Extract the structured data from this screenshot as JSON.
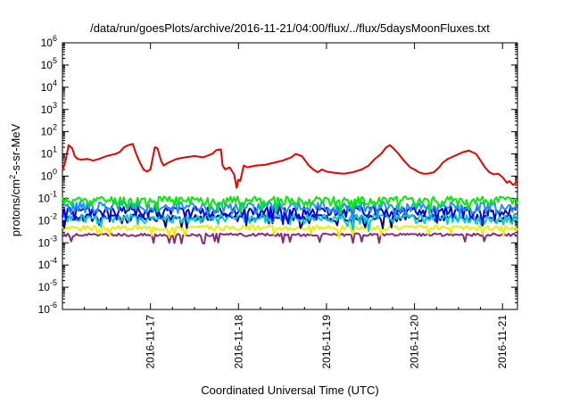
{
  "chart_data": {
    "type": "line",
    "title": "/data/run/goesPlots/archive/2016-11-21/04:00/flux/../flux/5daysMoonFluxes.txt",
    "xlabel": "Coordinated Universal Time (UTC)",
    "ylabel": {
      "base": "protons/cm",
      "sup": "2",
      "rest": "-s-sr-MeV"
    },
    "x_tick_labels": [
      "2016-11-17",
      "2016-11-18",
      "2016-11-19",
      "2016-11-20",
      "2016-11-21"
    ],
    "x_tick_days": [
      1,
      2,
      3,
      4,
      5
    ],
    "xlim_days": [
      0,
      5.17
    ],
    "y_scale": "log",
    "ylim_exp": [
      -6,
      6
    ],
    "y_ticks": [
      {
        "base": "10",
        "exp": "-6"
      },
      {
        "base": "10",
        "exp": "-5"
      },
      {
        "base": "10",
        "exp": "-4"
      },
      {
        "base": "10",
        "exp": "-3"
      },
      {
        "base": "10",
        "exp": "-2"
      },
      {
        "base": "10",
        "exp": "-1"
      },
      {
        "base": "10",
        "exp": "0"
      },
      {
        "base": "10",
        "exp": "1"
      },
      {
        "base": "10",
        "exp": "2"
      },
      {
        "base": "10",
        "exp": "3"
      },
      {
        "base": "10",
        "exp": "4"
      },
      {
        "base": "10",
        "exp": "5"
      },
      {
        "base": "10",
        "exp": "6"
      }
    ],
    "grid": false,
    "legend": "none",
    "series": [
      {
        "color": "#ee0000",
        "points": [
          [
            0.0,
            1.8
          ],
          [
            0.03,
            4
          ],
          [
            0.07,
            25
          ],
          [
            0.11,
            18
          ],
          [
            0.14,
            8
          ],
          [
            0.17,
            6
          ],
          [
            0.22,
            5.5
          ],
          [
            0.28,
            6
          ],
          [
            0.35,
            5
          ],
          [
            0.42,
            6
          ],
          [
            0.5,
            8
          ],
          [
            0.6,
            10
          ],
          [
            0.65,
            12
          ],
          [
            0.7,
            20
          ],
          [
            0.75,
            25
          ],
          [
            0.8,
            28
          ],
          [
            0.83,
            12
          ],
          [
            0.87,
            5
          ],
          [
            0.92,
            2
          ],
          [
            0.96,
            1.6
          ],
          [
            1.0,
            2
          ],
          [
            1.05,
            20
          ],
          [
            1.08,
            18
          ],
          [
            1.12,
            5
          ],
          [
            1.15,
            3
          ],
          [
            1.2,
            4
          ],
          [
            1.3,
            6
          ],
          [
            1.4,
            7
          ],
          [
            1.5,
            8
          ],
          [
            1.6,
            7
          ],
          [
            1.7,
            10
          ],
          [
            1.75,
            15
          ],
          [
            1.8,
            16
          ],
          [
            1.82,
            3
          ],
          [
            1.85,
            2
          ],
          [
            1.9,
            2.5
          ],
          [
            1.95,
            1.2
          ],
          [
            1.98,
            0.3
          ],
          [
            2.0,
            0.7
          ],
          [
            2.02,
            0.6
          ],
          [
            2.06,
            3
          ],
          [
            2.1,
            2.5
          ],
          [
            2.2,
            3
          ],
          [
            2.3,
            3.2
          ],
          [
            2.4,
            4
          ],
          [
            2.5,
            5
          ],
          [
            2.6,
            7
          ],
          [
            2.65,
            10
          ],
          [
            2.72,
            8
          ],
          [
            2.8,
            3
          ],
          [
            2.85,
            2
          ],
          [
            2.9,
            1.5
          ],
          [
            2.95,
            2
          ],
          [
            3.0,
            1.6
          ],
          [
            3.05,
            1.5
          ],
          [
            3.1,
            1.4
          ],
          [
            3.2,
            1.3
          ],
          [
            3.3,
            1.5
          ],
          [
            3.4,
            2
          ],
          [
            3.48,
            3
          ],
          [
            3.55,
            6
          ],
          [
            3.62,
            10
          ],
          [
            3.68,
            20
          ],
          [
            3.72,
            25
          ],
          [
            3.76,
            18
          ],
          [
            3.82,
            10
          ],
          [
            3.88,
            5
          ],
          [
            3.95,
            2.5
          ],
          [
            4.0,
            2
          ],
          [
            4.05,
            1.5
          ],
          [
            4.1,
            1.3
          ],
          [
            4.15,
            1.3
          ],
          [
            4.22,
            1.5
          ],
          [
            4.28,
            2.5
          ],
          [
            4.32,
            4
          ],
          [
            4.38,
            6
          ],
          [
            4.45,
            8
          ],
          [
            4.55,
            12
          ],
          [
            4.62,
            14
          ],
          [
            4.7,
            10
          ],
          [
            4.75,
            5
          ],
          [
            4.8,
            2.5
          ],
          [
            4.85,
            1.5
          ],
          [
            4.9,
            1.2
          ],
          [
            4.95,
            1.3
          ],
          [
            5.0,
            0.9
          ],
          [
            5.05,
            0.5
          ],
          [
            5.08,
            0.6
          ],
          [
            5.12,
            0.4
          ],
          [
            5.15,
            0.5
          ],
          [
            5.17,
            0.7
          ]
        ]
      },
      {
        "color": "#00ee00",
        "base": 0.085,
        "amp": 0.45,
        "seed": 11
      },
      {
        "color": "#1e90ff",
        "base": 0.045,
        "amp": 0.55,
        "seed": 23
      },
      {
        "color": "#0000ee",
        "base": 0.028,
        "amp": 0.55,
        "seed": 37
      },
      {
        "color": "#00cdcd",
        "base": 0.013,
        "amp": 0.5,
        "seed": 41
      },
      {
        "color": "#0000a0",
        "base": 0.014,
        "amp": 0.35,
        "seed": 53
      },
      {
        "color": "#eeee00",
        "base": 0.0048,
        "amp": 0.25,
        "seed": 67
      },
      {
        "color": "#8b2a7a",
        "base": 0.0023,
        "amp": 0.15,
        "seed": 79
      }
    ]
  }
}
